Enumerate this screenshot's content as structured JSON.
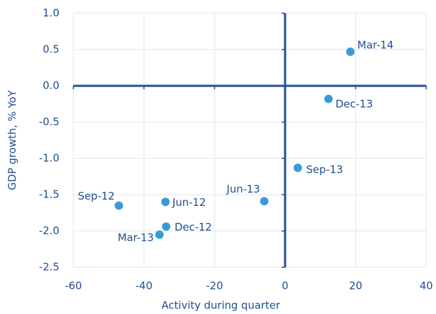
{
  "chart_data": {
    "type": "scatter",
    "x_label": "Activity during quarter",
    "y_label": "GDP growth, % YoY",
    "labels": [
      "Mar-14",
      "Dec-13",
      "Sep-13",
      "Jun-13",
      "Jun-12",
      "Sep-12",
      "Dec-12",
      "Mar-13"
    ],
    "x": [
      18.5,
      12.3,
      3.6,
      -5.9,
      -33.9,
      -47.1,
      -33.7,
      -35.6
    ],
    "y": [
      0.47,
      -0.18,
      -1.13,
      -1.59,
      -1.6,
      -1.65,
      -1.94,
      -2.05
    ],
    "color": "#3a9ad9",
    "xlim": [
      -60,
      40
    ],
    "xticks": [
      -60,
      -40,
      -20,
      0,
      20,
      40
    ],
    "ylim": [
      -2.5,
      1.0
    ],
    "yticks": [
      {
        "value": 1.0,
        "label": "1.0"
      },
      0.5,
      {
        "value": 0.0,
        "label": "0.0"
      },
      -0.5,
      {
        "value": -1.0,
        "label": "-1.0"
      },
      -1.5,
      {
        "value": -2.0,
        "label": "-2.0"
      },
      -2.5
    ],
    "grid": true
  }
}
